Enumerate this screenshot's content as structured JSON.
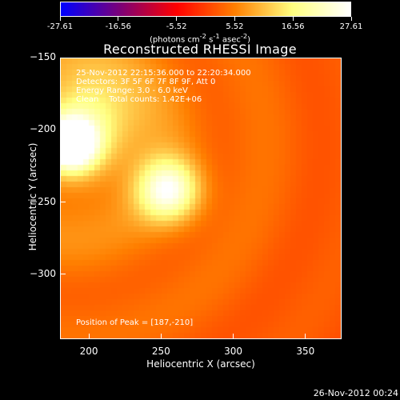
{
  "colorbar": {
    "ticks": [
      "-27.61",
      "-16.56",
      "-5.52",
      "5.52",
      "16.56",
      "27.61"
    ],
    "units_parts": [
      "(photons cm",
      "-2",
      " s",
      "-1",
      " asec",
      "-2",
      ")"
    ]
  },
  "title": "Reconstructed RHESSI Image",
  "annotations": {
    "time": "25-Nov-2012 22:15:36.000 to 22:20:34.000",
    "detectors": "Detectors: 3F 5F 6F 7F 8F 9F, Att 0",
    "energy": "Energy Range: 3.0 - 6.0 keV",
    "clean": "Clean    Total counts: 1.42E+06",
    "peak": "Position of Peak = [187,-210]"
  },
  "footer_timestamp": "26-Nov-2012 00:24",
  "chart_data": {
    "type": "heatmap",
    "title": "Reconstructed RHESSI Image",
    "xlabel": "Heliocentric X (arcsec)",
    "ylabel": "Heliocentric Y (arcsec)",
    "xlim": [
      180,
      375
    ],
    "ylim": [
      -345,
      -150
    ],
    "xticks": [
      200,
      250,
      300,
      350
    ],
    "yticks": [
      -150,
      -200,
      -250,
      -300
    ],
    "color_range": [
      -27.61,
      27.61
    ],
    "colormap": [
      "#0000ff",
      "#7a007a",
      "#ff0000",
      "#ff7f00",
      "#ffff80",
      "#ffffff"
    ],
    "sources": [
      {
        "x": 187,
        "y": -210,
        "peak": 27.61,
        "sigma": 12
      },
      {
        "x": 255,
        "y": -242,
        "peak": 21.5,
        "sigma": 15
      },
      {
        "x": 200,
        "y": -190,
        "peak": 12,
        "sigma": 25
      }
    ],
    "peak_position": [
      187,
      -210
    ]
  }
}
